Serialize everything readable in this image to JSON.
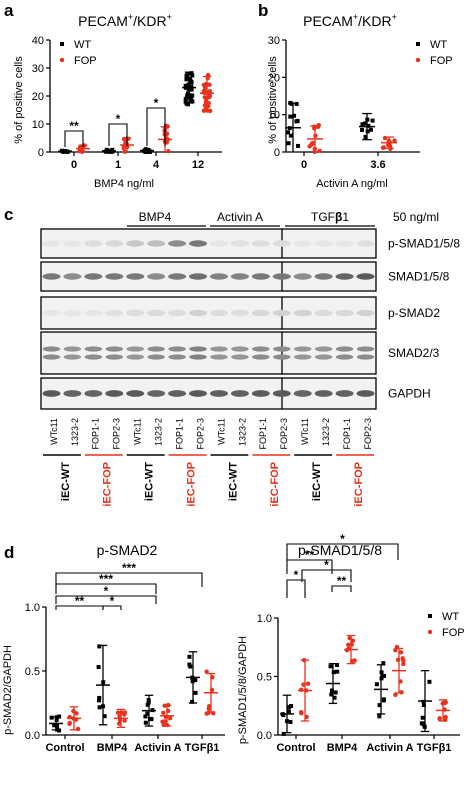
{
  "panel_labels": {
    "a": "a",
    "b": "b",
    "c": "c",
    "d": "d"
  },
  "colors": {
    "wt": "#000000",
    "fop": "#e8321e",
    "blot_bg": "#f2f2f2",
    "band": "#3a3a3a"
  },
  "chart_data": [
    {
      "type": "scatter",
      "panel": "a",
      "title_main": "PECAM",
      "title_sup1": "+",
      "title_mid": "/KDR",
      "title_sup2": "+",
      "ylabel": "% of positive cells",
      "xlabel": "BMP4 ng/ml",
      "ylim": [
        0,
        40
      ],
      "yticks": [
        "0",
        "10",
        "20",
        "30",
        "40"
      ],
      "categories": [
        "0",
        "1",
        "4",
        "12"
      ],
      "legend": [
        "WT",
        "FOP"
      ],
      "series": [
        {
          "name": "WT",
          "mean": [
            0.3,
            0.4,
            0.5,
            23
          ],
          "sd": [
            0.3,
            0.4,
            0.5,
            5.5
          ]
        },
        {
          "name": "FOP",
          "mean": [
            1.2,
            2.5,
            4.5,
            21
          ],
          "sd": [
            1.2,
            2.5,
            4.5,
            6
          ]
        }
      ],
      "significance": [
        {
          "group": "0",
          "text": "**"
        },
        {
          "group": "1",
          "text": "*"
        },
        {
          "group": "4",
          "text": "*"
        }
      ]
    },
    {
      "type": "scatter",
      "panel": "b",
      "title_main": "PECAM",
      "title_sup1": "+",
      "title_mid": "/KDR",
      "title_sup2": "+",
      "ylabel": "% of positive cells",
      "xlabel": "Activin A  ng/ml",
      "ylim": [
        0,
        30
      ],
      "yticks": [
        "0",
        "10",
        "20",
        "30"
      ],
      "categories": [
        "0",
        "3.6"
      ],
      "legend": [
        "WT",
        "FOP"
      ],
      "series": [
        {
          "name": "WT",
          "mean": [
            6.5,
            6.8
          ],
          "sd": [
            6.5,
            3.5
          ]
        },
        {
          "name": "FOP",
          "mean": [
            3.5,
            2.5
          ],
          "sd": [
            3.5,
            1.5
          ]
        }
      ]
    },
    {
      "type": "scatter",
      "panel": "d-left",
      "title": "p-SMAD2",
      "ylabel": "p-SMAD2/GAPDH",
      "ylim": [
        0,
        1.0
      ],
      "yticks": [
        "0.0",
        "0.5",
        "1.0"
      ],
      "categories": [
        "Control",
        "BMP4",
        "Activin A",
        "TGFβ1"
      ],
      "series": [
        {
          "name": "WT",
          "mean": [
            0.09,
            0.39,
            0.19,
            0.45
          ],
          "sd": [
            0.05,
            0.31,
            0.12,
            0.2
          ]
        },
        {
          "name": "FOP",
          "mean": [
            0.13,
            0.13,
            0.15,
            0.33
          ],
          "sd": [
            0.09,
            0.07,
            0.08,
            0.15
          ]
        }
      ],
      "significance": [
        "***",
        "***",
        "*",
        "**",
        "*"
      ]
    },
    {
      "type": "scatter",
      "panel": "d-right",
      "title": "p-SMAD1/5/8",
      "ylabel": "p-SMAD1/5/8/GAPDH",
      "ylim": [
        0,
        1.0
      ],
      "yticks": [
        "0.0",
        "0.5",
        "1.0"
      ],
      "categories": [
        "Control",
        "BMP4",
        "Activin A",
        "TGFβ1"
      ],
      "legend": [
        "WT",
        "FOP"
      ],
      "series": [
        {
          "name": "WT",
          "mean": [
            0.18,
            0.44,
            0.39,
            0.29
          ],
          "sd": [
            0.16,
            0.17,
            0.21,
            0.26
          ]
        },
        {
          "name": "FOP",
          "mean": [
            0.38,
            0.73,
            0.55,
            0.21
          ],
          "sd": [
            0.26,
            0.12,
            0.19,
            0.09
          ]
        }
      ],
      "significance": [
        "*",
        "**",
        "*",
        "**",
        "*"
      ]
    }
  ],
  "blot": {
    "concentration": "50 ng/ml",
    "treatments": [
      "BMP4",
      "Activin A",
      "TGF",
      "β",
      "1"
    ],
    "rows": [
      "p-SMAD1/5/8",
      "SMAD1/5/8",
      "p-SMAD2",
      "SMAD2/3",
      "GAPDH"
    ],
    "lanes": [
      "WTc11",
      "1323-2",
      "FOP1-1",
      "FOP2-3",
      "WTc11",
      "1323-2",
      "FOP1-1",
      "FOP2-3",
      "WTc11",
      "1323-2",
      "FOP1-1",
      "FOP2-3",
      "WTc11",
      "1323-2",
      "FOP1-1",
      "FOP2-3"
    ],
    "groups": [
      "iEC-WT",
      "iEC-FOP",
      "iEC-WT",
      "iEC-FOP",
      "iEC-WT",
      "iEC-FOP",
      "iEC-WT",
      "iEC-FOP"
    ],
    "intensity": [
      [
        0.05,
        0.05,
        0.1,
        0.12,
        0.2,
        0.25,
        0.5,
        0.6,
        0.05,
        0.08,
        0.1,
        0.1,
        0.05,
        0.05,
        0.05,
        0.08
      ],
      [
        0.6,
        0.5,
        0.6,
        0.6,
        0.6,
        0.5,
        0.6,
        0.65,
        0.55,
        0.55,
        0.6,
        0.6,
        0.5,
        0.6,
        0.7,
        0.75
      ],
      [
        0.05,
        0.05,
        0.05,
        0.08,
        0.1,
        0.1,
        0.1,
        0.15,
        0.1,
        0.1,
        0.12,
        0.15,
        0.15,
        0.1,
        0.12,
        0.15
      ],
      [
        0.5,
        0.45,
        0.5,
        0.5,
        0.45,
        0.5,
        0.5,
        0.55,
        0.45,
        0.45,
        0.5,
        0.5,
        0.45,
        0.45,
        0.5,
        0.5
      ],
      [
        0.75,
        0.7,
        0.7,
        0.75,
        0.75,
        0.7,
        0.72,
        0.75,
        0.72,
        0.72,
        0.74,
        0.75,
        0.7,
        0.72,
        0.72,
        0.75
      ]
    ]
  }
}
